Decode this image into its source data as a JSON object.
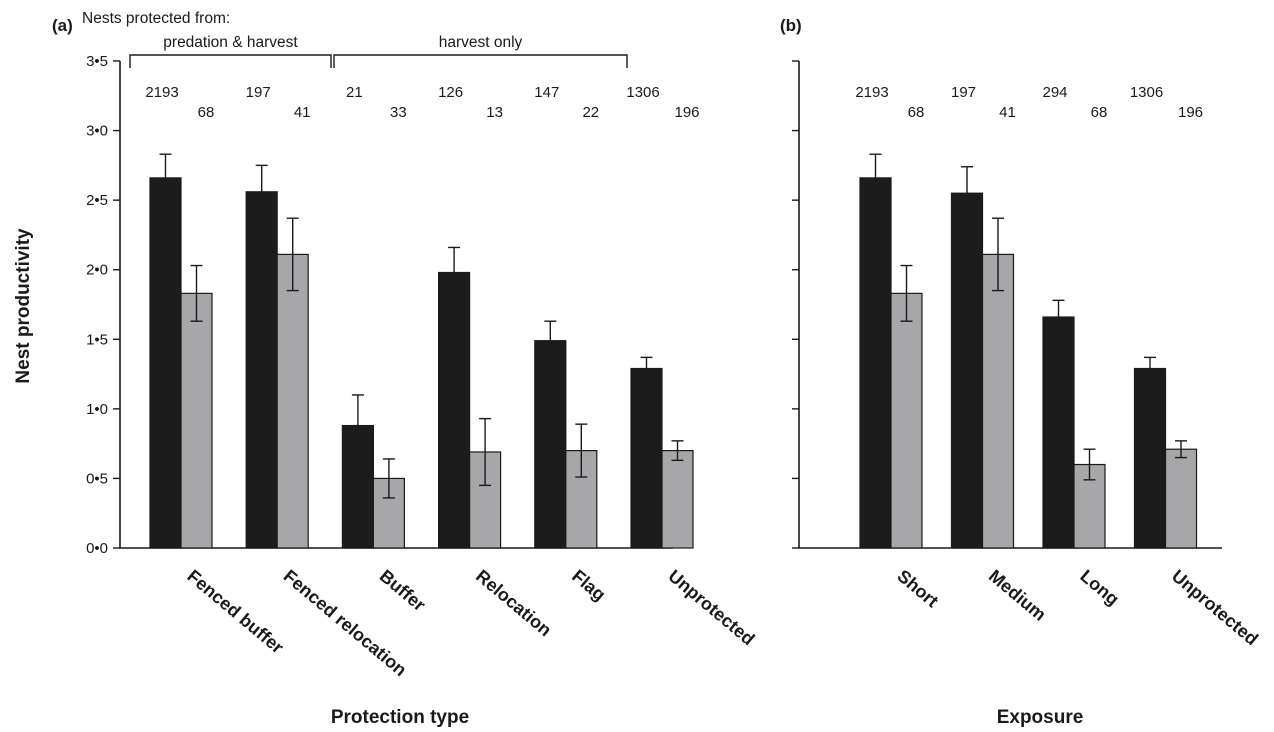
{
  "chart_data": [
    {
      "type": "bar",
      "panel_label": "(a)",
      "xlabel": "Protection type",
      "ylabel": "Nest productivity",
      "ylim": [
        0,
        3.5
      ],
      "yticks": [
        "0•0",
        "0•5",
        "1•0",
        "1•5",
        "2•0",
        "2•5",
        "3•0",
        "3•5"
      ],
      "grid": false,
      "group_header": "Nests protected from:",
      "groups": [
        {
          "label": "predation & harvest",
          "start": 0,
          "end": 1
        },
        {
          "label": "harvest only",
          "start": 2,
          "end": 4
        }
      ],
      "categories": [
        "Fenced buffer",
        "Fenced relocation",
        "Buffer",
        "Relocation",
        "Flag",
        "Unprotected"
      ],
      "series": [
        {
          "color": "#1c1c1c",
          "values": [
            2.66,
            2.56,
            0.88,
            1.98,
            1.49,
            1.29
          ],
          "errors": [
            0.17,
            0.19,
            0.22,
            0.18,
            0.14,
            0.08
          ],
          "n": [
            "2193",
            "197",
            "21",
            "126",
            "147",
            "1306"
          ]
        },
        {
          "color": "#a7a7a9",
          "values": [
            1.83,
            2.11,
            0.5,
            0.69,
            0.7,
            0.7
          ],
          "errors": [
            0.2,
            0.26,
            0.14,
            0.24,
            0.19,
            0.07
          ],
          "n": [
            "68",
            "41",
            "33",
            "13",
            "22",
            "196"
          ]
        }
      ]
    },
    {
      "type": "bar",
      "panel_label": "(b)",
      "xlabel": "Exposure",
      "ylabel": "",
      "ylim": [
        0,
        3.5
      ],
      "grid": false,
      "categories": [
        "Short",
        "Medium",
        "Long",
        "Unprotected"
      ],
      "series": [
        {
          "color": "#1c1c1c",
          "values": [
            2.66,
            2.55,
            1.66,
            1.29
          ],
          "errors": [
            0.17,
            0.19,
            0.12,
            0.08
          ],
          "n": [
            "2193",
            "197",
            "294",
            "1306"
          ]
        },
        {
          "color": "#a7a7a9",
          "values": [
            1.83,
            2.11,
            0.6,
            0.71
          ],
          "errors": [
            0.2,
            0.26,
            0.11,
            0.06
          ],
          "n": [
            "68",
            "41",
            "68",
            "196"
          ]
        }
      ]
    }
  ]
}
